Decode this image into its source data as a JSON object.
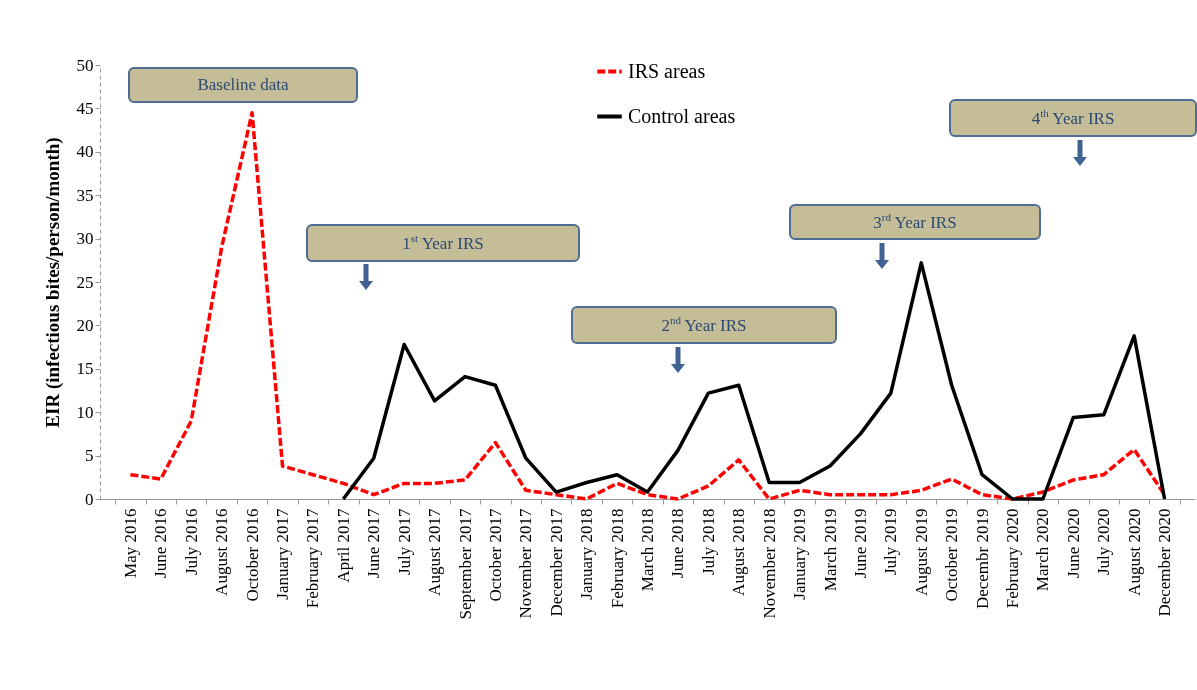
{
  "chart_data": {
    "type": "line",
    "ylabel": "EIR (infectious bites/person/month)",
    "categories": [
      "May 2016",
      "June 2016",
      "July 2016",
      "August 2016",
      "October 2016",
      "January 2017",
      "February 2017",
      "April 2017",
      "June 2017",
      "July 2017",
      "August 2017",
      "September 2017",
      "October 2017",
      "November 2017",
      "December 2017",
      "January 2018",
      "February 2018",
      "March 2018",
      "June 2018",
      "July 2018",
      "August 2018",
      "November 2018",
      "January 2019",
      "March 2019",
      "June 2019",
      "July 2019",
      "August 2019",
      "October 2019",
      "Decembr 2019",
      "February 2020",
      "March 2020",
      "June 2020",
      "July 2020",
      "August 2020",
      "December 2020"
    ],
    "series": [
      {
        "name": "IRS areas",
        "color": "#ff0000",
        "line_style": "dashed",
        "values": [
          2.8,
          2.3,
          9,
          29,
          44.5,
          3.8,
          2.8,
          1.8,
          0.5,
          1.8,
          1.8,
          2.2,
          6.5,
          1,
          0.5,
          0,
          1.8,
          0.5,
          0,
          1.5,
          4.5,
          0,
          1,
          0.5,
          0.5,
          0.5,
          1,
          2.3,
          0.5,
          0,
          0.8,
          2.2,
          2.8,
          5.7,
          0.5
        ]
      },
      {
        "name": "Control areas",
        "color": "#000000",
        "line_style": "solid",
        "values": [
          null,
          null,
          null,
          null,
          null,
          null,
          null,
          0,
          4.7,
          17.8,
          11.3,
          14.1,
          13.1,
          4.7,
          0.8,
          1.9,
          2.8,
          0.8,
          5.6,
          12.2,
          13.1,
          1.9,
          1.9,
          3.8,
          7.5,
          12.2,
          27.2,
          13.1,
          2.8,
          0,
          0,
          9.4,
          9.7,
          18.8,
          0
        ]
      }
    ],
    "ylim": [
      0,
      50
    ],
    "yticks": [
      0,
      5,
      10,
      15,
      20,
      25,
      30,
      35,
      40,
      45,
      50
    ],
    "grid": false,
    "legend": "top",
    "marker": "none",
    "annotations": [
      "Baseline data",
      "1$^{st}$ Year IRS",
      "2$^{nd}$ Year IRS",
      "3$^{rd}$ Year IRS",
      "4$^{th}$ Year IRS"
    ]
  }
}
